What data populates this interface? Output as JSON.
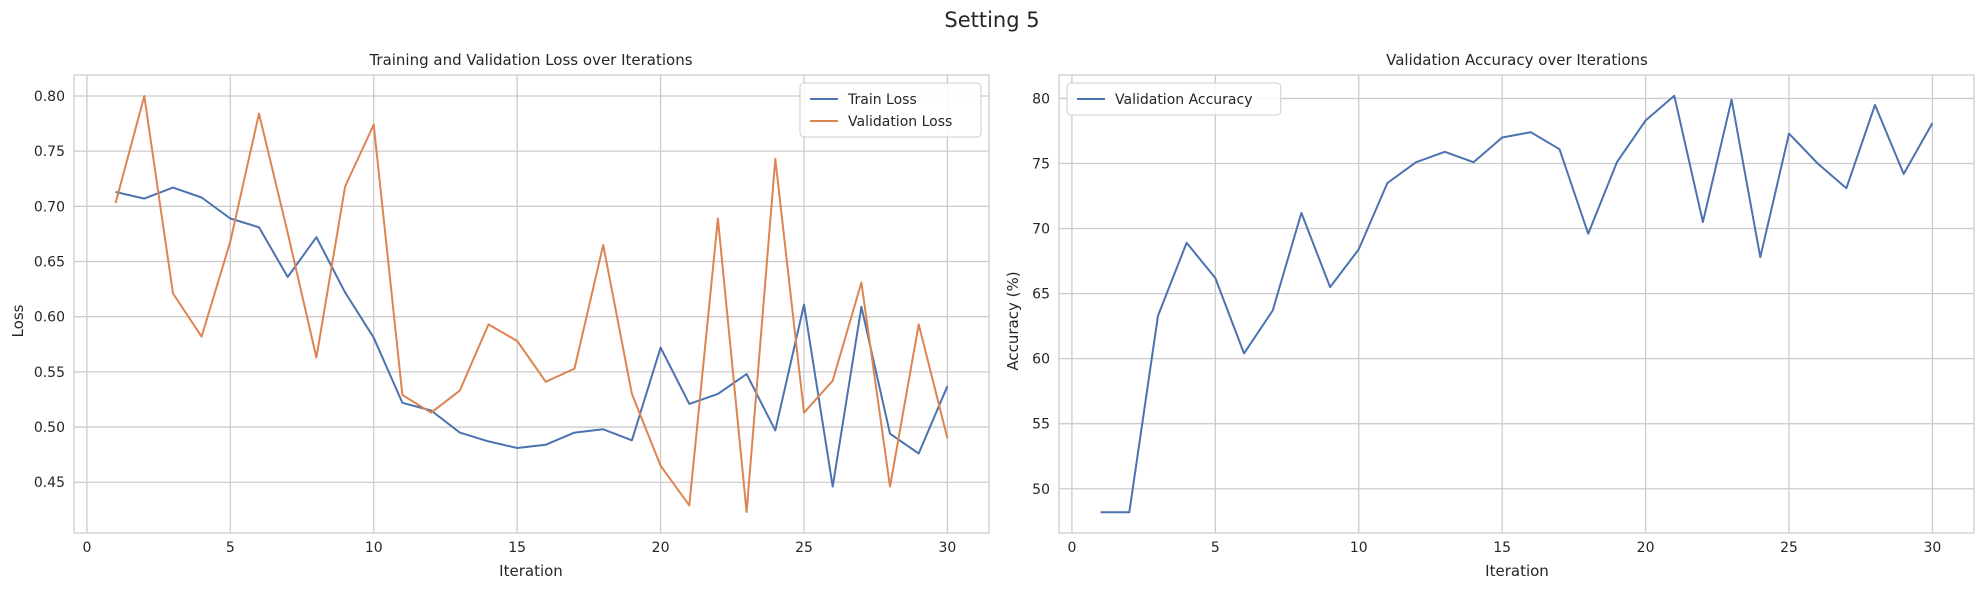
{
  "figure": {
    "title": "Setting 5"
  },
  "colors": {
    "blue": "#4c72b0",
    "orange": "#dd8452",
    "grid": "#cccccc",
    "axes_edge": "#cccccc"
  },
  "chart_data": [
    {
      "type": "line",
      "title": "Training and Validation Loss over Iterations",
      "xlabel": "Iteration",
      "ylabel": "Loss",
      "xlim": [
        -0.45,
        31.45
      ],
      "ylim": [
        0.404,
        0.819
      ],
      "xticks": [
        0,
        5,
        10,
        15,
        20,
        25,
        30
      ],
      "yticks": [
        0.45,
        0.5,
        0.55,
        0.6,
        0.65,
        0.7,
        0.75,
        0.8
      ],
      "ytick_labels": [
        "0.45",
        "0.50",
        "0.55",
        "0.60",
        "0.65",
        "0.70",
        "0.75",
        "0.80"
      ],
      "grid": true,
      "legend_position": "top-right",
      "x": [
        1,
        2,
        3,
        4,
        5,
        6,
        7,
        8,
        9,
        10,
        11,
        12,
        13,
        14,
        15,
        16,
        17,
        18,
        19,
        20,
        21,
        22,
        23,
        24,
        25,
        26,
        27,
        28,
        29,
        30
      ],
      "series": [
        {
          "name": "Train Loss",
          "color": "#4c72b0",
          "values": [
            0.713,
            0.707,
            0.717,
            0.708,
            0.689,
            0.681,
            0.636,
            0.672,
            0.622,
            0.581,
            0.522,
            0.515,
            0.495,
            0.487,
            0.481,
            0.484,
            0.495,
            0.498,
            0.488,
            0.572,
            0.521,
            0.53,
            0.548,
            0.497,
            0.611,
            0.446,
            0.609,
            0.494,
            0.476,
            0.537
          ]
        },
        {
          "name": "Validation Loss",
          "color": "#dd8452",
          "values": [
            0.703,
            0.8,
            0.621,
            0.582,
            0.668,
            0.784,
            0.676,
            0.563,
            0.718,
            0.774,
            0.529,
            0.513,
            0.533,
            0.593,
            0.578,
            0.541,
            0.553,
            0.665,
            0.53,
            0.465,
            0.429,
            0.689,
            0.423,
            0.743,
            0.513,
            0.542,
            0.631,
            0.446,
            0.593,
            0.49
          ]
        }
      ]
    },
    {
      "type": "line",
      "title": "Validation Accuracy over Iterations",
      "xlabel": "Iteration",
      "ylabel": "Accuracy (%)",
      "xlim": [
        -0.45,
        31.45
      ],
      "ylim": [
        46.6,
        81.8
      ],
      "xticks": [
        0,
        5,
        10,
        15,
        20,
        25,
        30
      ],
      "yticks": [
        50,
        55,
        60,
        65,
        70,
        75,
        80
      ],
      "ytick_labels": [
        "50",
        "55",
        "60",
        "65",
        "70",
        "75",
        "80"
      ],
      "grid": true,
      "legend_position": "top-left",
      "x": [
        1,
        2,
        3,
        4,
        5,
        6,
        7,
        8,
        9,
        10,
        11,
        12,
        13,
        14,
        15,
        16,
        17,
        18,
        19,
        20,
        21,
        22,
        23,
        24,
        25,
        26,
        27,
        28,
        29,
        30
      ],
      "series": [
        {
          "name": "Validation Accuracy",
          "color": "#4c72b0",
          "values": [
            48.2,
            48.2,
            63.3,
            68.9,
            66.2,
            60.4,
            63.7,
            71.2,
            65.5,
            68.4,
            73.5,
            75.1,
            75.9,
            75.1,
            77.0,
            77.4,
            76.1,
            69.6,
            75.1,
            78.3,
            80.2,
            70.5,
            79.9,
            67.8,
            77.3,
            75.0,
            73.1,
            79.5,
            74.2,
            78.1
          ]
        }
      ]
    }
  ]
}
